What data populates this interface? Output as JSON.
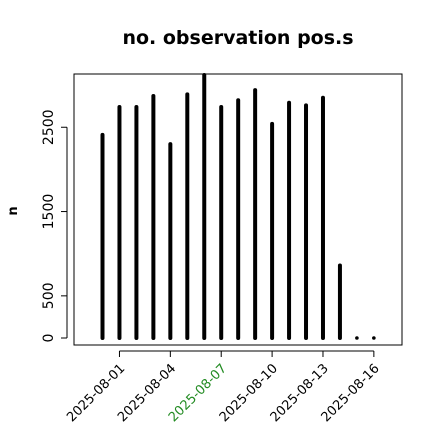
{
  "chart_data": {
    "type": "bar",
    "title": "no. observation pos.s",
    "xlabel": "",
    "ylabel": "n",
    "ylim": [
      0,
      3130
    ],
    "yticks": [
      0,
      500,
      1500,
      2500
    ],
    "categories": [
      "2025-07-31",
      "2025-08-01",
      "2025-08-02",
      "2025-08-03",
      "2025-08-04",
      "2025-08-05",
      "2025-08-06",
      "2025-08-07",
      "2025-08-08",
      "2025-08-09",
      "2025-08-10",
      "2025-08-11",
      "2025-08-12",
      "2025-08-13",
      "2025-08-14",
      "2025-08-15",
      "2025-08-16"
    ],
    "values": [
      2410,
      2740,
      2740,
      2870,
      2300,
      2890,
      3120,
      2740,
      2820,
      2940,
      2540,
      2790,
      2760,
      2850,
      860,
      20,
      20
    ],
    "xtick_labels": [
      {
        "label": "2025-08-01",
        "color": "#000000"
      },
      {
        "label": "2025-08-04",
        "color": "#000000"
      },
      {
        "label": "2025-08-07",
        "color": "#228B22"
      },
      {
        "label": "2025-08-10",
        "color": "#000000"
      },
      {
        "label": "2025-08-13",
        "color": "#000000"
      },
      {
        "label": "2025-08-16",
        "color": "#000000"
      }
    ],
    "bar_color": "#000000",
    "grid": false
  }
}
